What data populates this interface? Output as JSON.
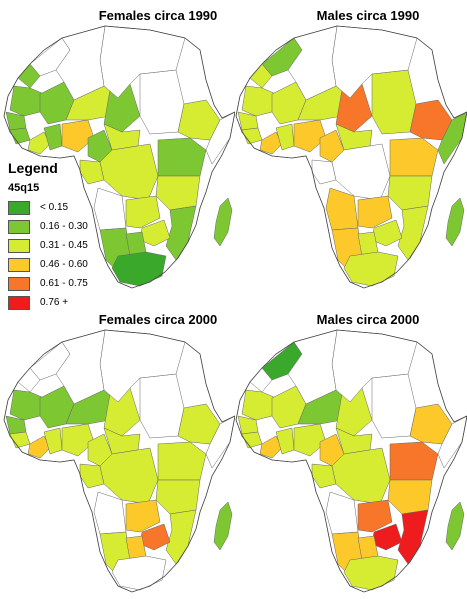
{
  "maps": [
    {
      "title": "Females circa 1990"
    },
    {
      "title": "Males circa 1990"
    },
    {
      "title": "Females circa 2000"
    },
    {
      "title": "Males circa 2000"
    }
  ],
  "legend": {
    "heading": "Legend",
    "variable": "45q15",
    "classes": [
      {
        "label": "< 0.15",
        "color": "#3aa82a"
      },
      {
        "label": "0.16 - 0.30",
        "color": "#7dc832"
      },
      {
        "label": "0.31 - 0.45",
        "color": "#d6ec32"
      },
      {
        "label": "0.46 - 0.60",
        "color": "#fdc82a"
      },
      {
        "label": "0.61 - 0.75",
        "color": "#f7762a"
      },
      {
        "label": "0.76 +",
        "color": "#ee1c1c"
      }
    ]
  }
}
